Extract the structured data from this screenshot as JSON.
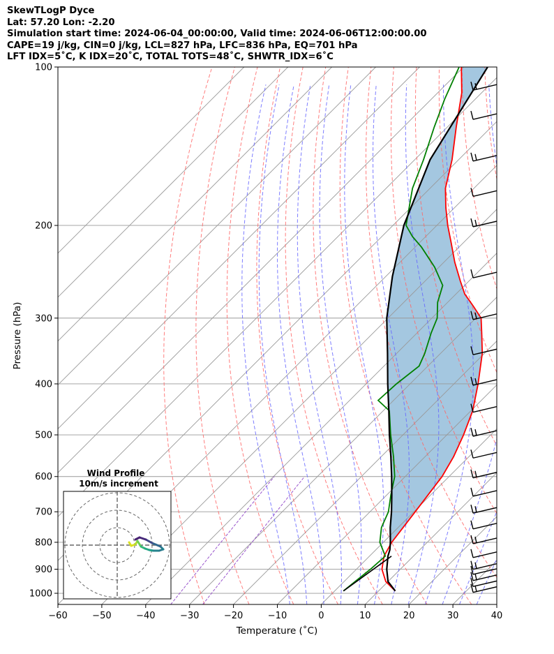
{
  "header": {
    "line1": "SkewTLogP Dyce",
    "line2": "Lat: 57.20   Lon: -2.20",
    "line3": "Simulation start time: 2024-06-04_00:00:00, Valid time: 2024-06-06T12:00:00.00",
    "line4": "CAPE=19 j/kg, CIN=0 j/kg, LCL=827 hPa, LFC=836 hPa, EQ=701 hPa",
    "line5": "LFT IDX=5˚C, K IDX=20˚C, TOTAL TOTS=48˚C, SHWTR_IDX=6˚C"
  },
  "chart_data": {
    "type": "line",
    "title": "SkewTLogP Dyce",
    "xlabel": "Temperature (˚C)",
    "ylabel": "Pressure (hPa)",
    "xlim": [
      -60,
      40
    ],
    "ylim": [
      1050,
      100
    ],
    "x_ticks": [
      "−60",
      "−50",
      "−40",
      "−30",
      "−20",
      "−10",
      "0",
      "10",
      "20",
      "30",
      "40"
    ],
    "y_ticks": [
      "100",
      "200",
      "300",
      "400",
      "500",
      "600",
      "700",
      "800",
      "900",
      "1000"
    ],
    "colors": {
      "temperature": "#ff0000",
      "dewpoint": "#008000",
      "parcel": "#000000",
      "cape_fill": "#a4c7e0",
      "dry_adiabats": "#ff6666",
      "moist_adiabats": "#6666ff",
      "mixing_ratio": "#9955cc",
      "isotherms": "#999999"
    },
    "series": [
      {
        "name": "temperature",
        "points": [
          [
            990,
            13.8
          ],
          [
            950,
            9.5
          ],
          [
            900,
            5.8
          ],
          [
            850,
            3.3
          ],
          [
            800,
            1.9
          ],
          [
            700,
            0.3
          ],
          [
            600,
            -1.6
          ],
          [
            550,
            -3.5
          ],
          [
            500,
            -6.2
          ],
          [
            450,
            -9.6
          ],
          [
            400,
            -14.5
          ],
          [
            350,
            -20.5
          ],
          [
            320,
            -25.3
          ],
          [
            300,
            -28.8
          ],
          [
            285,
            -33.2
          ],
          [
            270,
            -38
          ],
          [
            255,
            -42
          ],
          [
            235,
            -47.5
          ],
          [
            215,
            -53
          ],
          [
            200,
            -57.5
          ],
          [
            185,
            -62
          ],
          [
            170,
            -66.5
          ],
          [
            150,
            -71.5
          ],
          [
            130,
            -78
          ],
          [
            112,
            -84.5
          ],
          [
            100,
            -90.5
          ]
        ]
      },
      {
        "name": "dewpoint",
        "points": [
          [
            990,
            2
          ],
          [
            950,
            2.5
          ],
          [
            900,
            3.2
          ],
          [
            850,
            3.6
          ],
          [
            800,
            -0.8
          ],
          [
            750,
            -3.8
          ],
          [
            700,
            -5.8
          ],
          [
            650,
            -9.1
          ],
          [
            600,
            -12.4
          ],
          [
            550,
            -17.2
          ],
          [
            500,
            -22.8
          ],
          [
            450,
            -28.6
          ],
          [
            430,
            -33.5
          ],
          [
            400,
            -33.1
          ],
          [
            370,
            -32
          ],
          [
            350,
            -33.6
          ],
          [
            320,
            -36.8
          ],
          [
            300,
            -38.8
          ],
          [
            280,
            -42.3
          ],
          [
            260,
            -45
          ],
          [
            240,
            -51
          ],
          [
            220,
            -58.5
          ],
          [
            210,
            -63
          ],
          [
            200,
            -67
          ],
          [
            170,
            -74
          ],
          [
            150,
            -78
          ],
          [
            130,
            -83
          ],
          [
            115,
            -87
          ],
          [
            100,
            -91
          ]
        ]
      },
      {
        "name": "parcel",
        "points": [
          [
            990,
            13.8
          ],
          [
            950,
            10
          ],
          [
            900,
            6.9
          ],
          [
            850,
            4.2
          ],
          [
            827,
            3.2
          ],
          [
            800,
            1.6
          ],
          [
            750,
            -1.8
          ],
          [
            700,
            -5.1
          ],
          [
            650,
            -8.9
          ],
          [
            600,
            -13.1
          ],
          [
            550,
            -17.8
          ],
          [
            500,
            -23.1
          ],
          [
            450,
            -28.7
          ],
          [
            400,
            -35.1
          ],
          [
            350,
            -42.1
          ],
          [
            300,
            -50.3
          ],
          [
            250,
            -58.5
          ],
          [
            200,
            -67.5
          ],
          [
            150,
            -76.5
          ],
          [
            100,
            -84.5
          ]
        ]
      }
    ],
    "dewpoint_surface_segment": [
      [
        990,
        2
      ],
      [
        850,
        5
      ]
    ],
    "wind_barbs_pressures": [
      990,
      965,
      940,
      915,
      895,
      850,
      800,
      750,
      700,
      650,
      600,
      550,
      500,
      450,
      400,
      350,
      300,
      250,
      200,
      175,
      150,
      125,
      110
    ],
    "hodograph": {
      "title": "Wind Profile",
      "subtitle": "10m/s increment",
      "rings_ms": [
        10,
        20,
        30
      ]
    }
  }
}
